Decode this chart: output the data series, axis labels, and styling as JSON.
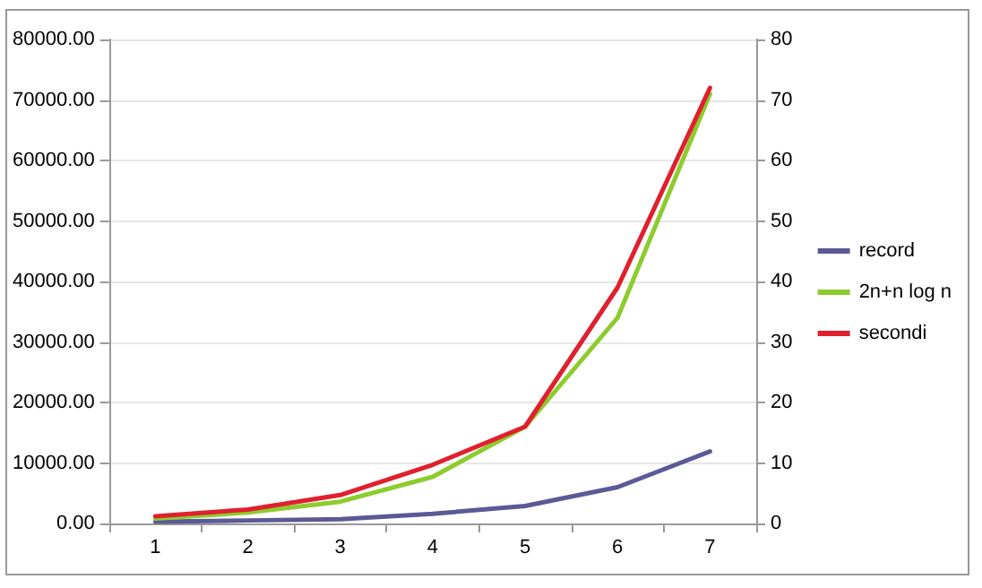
{
  "chart_data": {
    "type": "line",
    "categories": [
      "1",
      "2",
      "3",
      "4",
      "5",
      "6",
      "7"
    ],
    "series": [
      {
        "name": "record",
        "color": "#5b5a96",
        "values": [
          300,
          500,
          700,
          1600,
          2900,
          6000,
          11900
        ]
      },
      {
        "name": "2n+n log n",
        "color": "#8ccc2e",
        "values": [
          800,
          1800,
          3600,
          7700,
          16000,
          34000,
          71000
        ]
      },
      {
        "name": "secondi",
        "color": "#e0202e",
        "axis": "y2",
        "values": [
          1.2,
          2.3,
          4.7,
          9.7,
          16,
          39,
          72
        ]
      }
    ],
    "ylim": [
      0,
      80000
    ],
    "yticks": [
      {
        "value": 0,
        "label": "0.00"
      },
      {
        "value": 10000,
        "label": "10000.00"
      },
      {
        "value": 20000,
        "label": "20000.00"
      },
      {
        "value": 30000,
        "label": "30000.00"
      },
      {
        "value": 40000,
        "label": "40000.00"
      },
      {
        "value": 50000,
        "label": "50000.00"
      },
      {
        "value": 60000,
        "label": "60000.00"
      },
      {
        "value": 70000,
        "label": "70000.00"
      },
      {
        "value": 80000,
        "label": "80000.00"
      }
    ],
    "y2lim": [
      0,
      80
    ],
    "y2ticks": [
      0,
      10,
      20,
      30,
      40,
      50,
      60,
      70,
      80
    ],
    "grid": "y",
    "legend": "right",
    "marker": "none",
    "line_style": "solid"
  }
}
